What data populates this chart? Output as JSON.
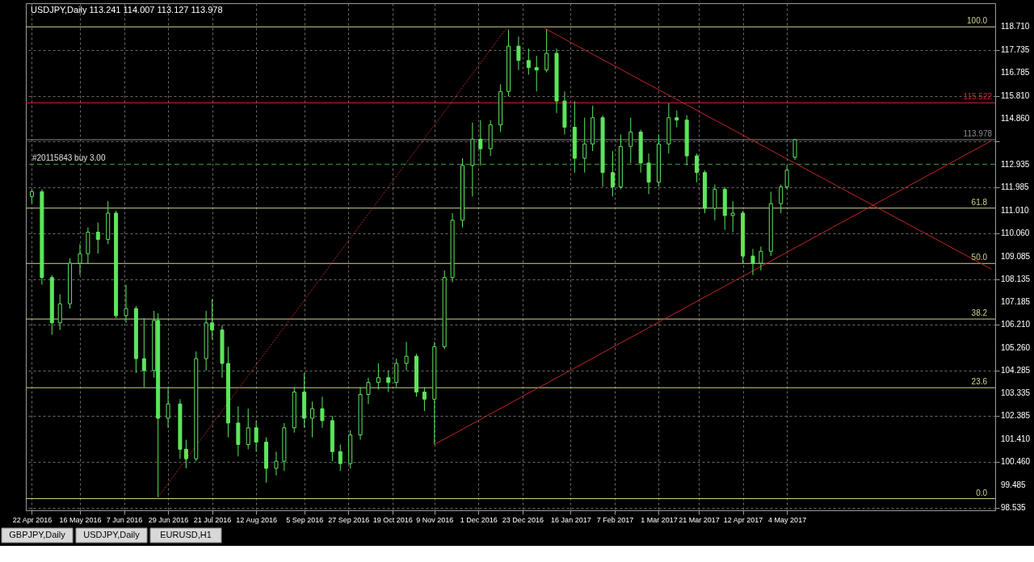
{
  "chart_data": {
    "type": "candlestick",
    "title": "USDJPY,Daily  113.241 114.007 113.127 113.978",
    "color": "#5ce65c",
    "x": [
      "2016-04-22",
      "2016-04-27",
      "2016-05-02",
      "2016-05-06",
      "2016-05-11",
      "2016-05-16",
      "2016-05-20",
      "2016-05-25",
      "2016-05-30",
      "2016-06-03",
      "2016-06-08",
      "2016-06-13",
      "2016-06-17",
      "2016-06-22",
      "2016-06-24",
      "2016-06-29",
      "2016-07-05",
      "2016-07-08",
      "2016-07-13",
      "2016-07-18",
      "2016-07-21",
      "2016-07-26",
      "2016-07-29",
      "2016-08-03",
      "2016-08-08",
      "2016-08-12",
      "2016-08-17",
      "2016-08-22",
      "2016-08-26",
      "2016-08-31",
      "2016-09-05",
      "2016-09-09",
      "2016-09-14",
      "2016-09-19",
      "2016-09-23",
      "2016-09-28",
      "2016-10-03",
      "2016-10-07",
      "2016-10-12",
      "2016-10-17",
      "2016-10-21",
      "2016-10-26",
      "2016-10-31",
      "2016-11-04",
      "2016-11-09",
      "2016-11-14",
      "2016-11-18",
      "2016-11-23",
      "2016-11-28",
      "2016-12-02",
      "2016-12-07",
      "2016-12-12",
      "2016-12-16",
      "2016-12-21",
      "2016-12-26",
      "2016-12-30",
      "2017-01-04",
      "2017-01-09",
      "2017-01-13",
      "2017-01-18",
      "2017-01-23",
      "2017-01-27",
      "2017-02-01",
      "2017-02-06",
      "2017-02-10",
      "2017-02-15",
      "2017-02-20",
      "2017-02-24",
      "2017-03-01",
      "2017-03-06",
      "2017-03-10",
      "2017-03-15",
      "2017-03-20",
      "2017-03-24",
      "2017-03-29",
      "2017-04-03",
      "2017-04-07",
      "2017-04-12",
      "2017-04-17",
      "2017-04-21",
      "2017-04-26",
      "2017-05-01",
      "2017-05-04",
      "2017-05-08"
    ],
    "ohlc": [
      [
        111.6,
        111.9,
        111.3,
        111.8
      ],
      [
        111.8,
        111.9,
        107.9,
        108.2
      ],
      [
        108.2,
        108.3,
        105.8,
        106.3
      ],
      [
        106.3,
        107.5,
        106.0,
        107.1
      ],
      [
        107.1,
        109.0,
        106.9,
        108.8
      ],
      [
        108.8,
        109.6,
        108.3,
        109.2
      ],
      [
        109.2,
        110.3,
        108.8,
        110.1
      ],
      [
        110.1,
        110.5,
        109.2,
        109.8
      ],
      [
        109.8,
        111.4,
        109.6,
        110.9
      ],
      [
        110.9,
        111.0,
        106.5,
        106.6
      ],
      [
        106.6,
        107.9,
        106.3,
        106.9
      ],
      [
        106.9,
        107.0,
        104.2,
        104.8
      ],
      [
        104.8,
        106.5,
        103.6,
        104.3
      ],
      [
        104.3,
        106.8,
        104.0,
        106.4
      ],
      [
        106.4,
        106.7,
        99.0,
        102.3
      ],
      [
        102.3,
        103.6,
        101.9,
        102.9
      ],
      [
        102.9,
        103.1,
        100.6,
        101.0
      ],
      [
        101.0,
        101.4,
        100.2,
        100.6
      ],
      [
        100.6,
        105.1,
        100.5,
        104.8
      ],
      [
        104.8,
        106.8,
        104.3,
        106.3
      ],
      [
        106.3,
        107.3,
        105.6,
        106.0
      ],
      [
        106.0,
        106.2,
        104.0,
        104.6
      ],
      [
        104.6,
        105.3,
        101.5,
        102.1
      ],
      [
        102.1,
        102.8,
        100.7,
        101.2
      ],
      [
        101.2,
        102.7,
        101.0,
        101.9
      ],
      [
        101.9,
        102.2,
        100.9,
        101.3
      ],
      [
        101.3,
        101.5,
        99.6,
        100.2
      ],
      [
        100.2,
        100.9,
        99.9,
        100.5
      ],
      [
        100.5,
        102.1,
        100.1,
        101.9
      ],
      [
        101.9,
        103.6,
        101.7,
        103.4
      ],
      [
        103.4,
        104.2,
        101.9,
        102.3
      ],
      [
        102.3,
        103.0,
        101.5,
        102.7
      ],
      [
        102.7,
        103.2,
        101.9,
        102.2
      ],
      [
        102.2,
        102.4,
        100.5,
        100.9
      ],
      [
        100.9,
        101.2,
        100.1,
        100.4
      ],
      [
        100.4,
        101.8,
        100.2,
        101.6
      ],
      [
        101.6,
        103.6,
        101.4,
        103.3
      ],
      [
        103.3,
        104.0,
        102.9,
        103.8
      ],
      [
        103.8,
        104.6,
        103.5,
        104.0
      ],
      [
        104.0,
        104.3,
        103.4,
        103.8
      ],
      [
        103.8,
        104.8,
        103.6,
        104.6
      ],
      [
        104.6,
        105.5,
        104.3,
        104.9
      ],
      [
        104.9,
        105.0,
        103.2,
        103.4
      ],
      [
        103.4,
        103.6,
        102.6,
        103.1
      ],
      [
        103.1,
        105.5,
        101.2,
        105.3
      ],
      [
        105.3,
        108.5,
        105.2,
        108.2
      ],
      [
        108.2,
        110.9,
        108.0,
        110.6
      ],
      [
        110.6,
        113.2,
        110.3,
        112.9
      ],
      [
        112.9,
        114.7,
        111.6,
        114.0
      ],
      [
        114.0,
        114.8,
        112.9,
        113.6
      ],
      [
        113.6,
        114.8,
        113.3,
        114.6
      ],
      [
        114.6,
        116.3,
        114.3,
        116.0
      ],
      [
        116.0,
        118.6,
        115.8,
        117.9
      ],
      [
        117.9,
        118.3,
        116.9,
        117.3
      ],
      [
        117.3,
        117.8,
        116.7,
        117.0
      ],
      [
        117.0,
        117.5,
        116.0,
        116.9
      ],
      [
        116.9,
        118.6,
        116.8,
        117.6
      ],
      [
        117.6,
        117.8,
        115.1,
        115.6
      ],
      [
        115.6,
        116.0,
        114.2,
        114.5
      ],
      [
        114.5,
        115.6,
        112.6,
        113.2
      ],
      [
        113.2,
        114.9,
        112.6,
        113.8
      ],
      [
        113.8,
        115.4,
        113.5,
        114.9
      ],
      [
        114.9,
        115.0,
        112.0,
        112.6
      ],
      [
        112.6,
        113.5,
        111.6,
        112.0
      ],
      [
        112.0,
        114.2,
        111.9,
        113.7
      ],
      [
        113.7,
        114.9,
        113.0,
        114.3
      ],
      [
        114.3,
        114.4,
        112.6,
        113.0
      ],
      [
        113.0,
        113.4,
        111.7,
        112.2
      ],
      [
        112.2,
        114.2,
        112.0,
        113.8
      ],
      [
        113.8,
        115.5,
        113.4,
        114.9
      ],
      [
        114.9,
        115.2,
        114.5,
        114.8
      ],
      [
        114.8,
        115.0,
        112.9,
        113.3
      ],
      [
        113.3,
        113.4,
        112.2,
        112.6
      ],
      [
        112.6,
        112.7,
        110.9,
        111.1
      ],
      [
        111.1,
        112.1,
        110.6,
        111.9
      ],
      [
        111.9,
        112.0,
        110.2,
        110.8
      ],
      [
        110.8,
        111.4,
        110.1,
        110.9
      ],
      [
        110.9,
        111.0,
        108.8,
        109.1
      ],
      [
        109.1,
        109.4,
        108.3,
        108.8
      ],
      [
        108.8,
        109.5,
        108.5,
        109.3
      ],
      [
        109.3,
        111.8,
        109.1,
        111.3
      ],
      [
        111.3,
        112.1,
        110.9,
        112.0
      ],
      [
        112.0,
        112.9,
        111.9,
        112.7
      ],
      [
        113.241,
        114.007,
        113.127,
        113.978
      ]
    ],
    "series": [
      {
        "type": "line",
        "color": "#c0282d",
        "x": [
          "2017-01-03",
          "2017-08-14"
        ],
        "values": [
          118.65,
          108.56
        ]
      },
      {
        "type": "line",
        "color": "#c0282d",
        "x": [
          "2016-11-09",
          "2017-08-14"
        ],
        "values": [
          101.2,
          113.93
        ]
      },
      {
        "type": "line",
        "color": "#c0282d",
        "line_style": "dotted",
        "x": [
          "2016-06-24",
          "2016-12-15"
        ],
        "values": [
          99.0,
          118.66
        ]
      }
    ],
    "ref_lines": [
      {
        "axis": "y",
        "value": 118.71,
        "color": "#d2d28c"
      },
      {
        "axis": "y",
        "value": 111.11,
        "color": "#d2d28c"
      },
      {
        "axis": "y",
        "value": 108.79,
        "color": "#d2d28c"
      },
      {
        "axis": "y",
        "value": 106.46,
        "color": "#d2d28c"
      },
      {
        "axis": "y",
        "value": 103.58,
        "color": "#d2d28c"
      },
      {
        "axis": "y",
        "value": 98.93,
        "color": "#d2d28c"
      },
      {
        "axis": "y",
        "value": 115.522,
        "label": "115.522",
        "color": "#d0202a"
      },
      {
        "axis": "y",
        "value": 113.978,
        "label": "113.978",
        "color": "#8c8c8c"
      },
      {
        "axis": "y",
        "value": 112.95,
        "label": "#20115843 buy 3.00",
        "color": "#3c9c3c",
        "line_style": "dashed"
      }
    ],
    "annotations": [
      "GBPJPY,Daily",
      "USDJPY,Daily",
      "EURUSD,H1",
      {
        "text": "100.0",
        "x": "2017-08-12",
        "y": 118.71
      },
      {
        "text": "61.8",
        "x": "2017-08-12",
        "y": 111.11
      },
      {
        "text": "50.0",
        "x": "2017-08-12",
        "y": 108.79
      },
      {
        "text": "38.2",
        "x": "2017-08-12",
        "y": 106.46
      },
      {
        "text": "23.6",
        "x": "2017-08-12",
        "y": 103.58
      },
      {
        "text": "0.0",
        "x": "2017-08-12",
        "y": 98.93
      }
    ],
    "xlim": [
      "2016-04-21",
      "2017-08-14"
    ],
    "xticks": [
      {
        "value": "2016-04-22",
        "label": "22 Apr 2016"
      },
      {
        "value": "2016-05-16",
        "label": "16 May 2016"
      },
      {
        "value": "2016-06-07",
        "label": "7 Jun 2016"
      },
      {
        "value": "2016-06-29",
        "label": "29 Jun 2016"
      },
      {
        "value": "2016-07-21",
        "label": "21 Jul 2016"
      },
      {
        "value": "2016-08-12",
        "label": "12 Aug 2016"
      },
      {
        "value": "2016-09-05",
        "label": "5 Sep 2016"
      },
      {
        "value": "2016-09-27",
        "label": "27 Sep 2016"
      },
      {
        "value": "2016-10-19",
        "label": "19 Oct 2016"
      },
      {
        "value": "2016-11-09",
        "label": "9 Nov 2016"
      },
      {
        "value": "2016-12-01",
        "label": "1 Dec 2016"
      },
      {
        "value": "2016-12-23",
        "label": "23 Dec 2016"
      },
      {
        "value": "2017-01-16",
        "label": "16 Jan 2017"
      },
      {
        "value": "2017-02-07",
        "label": "7 Feb 2017"
      },
      {
        "value": "2017-03-01",
        "label": "1 Mar 2017"
      },
      {
        "value": "2017-03-21",
        "label": "21 Mar 2017"
      },
      {
        "value": "2017-04-12",
        "label": "12 Apr 2017"
      },
      {
        "value": "2017-05-04",
        "label": "4 May 2017"
      }
    ],
    "ylim": [
      98.44,
      119.7
    ],
    "yticks": [
      {
        "value": 98.535,
        "label": "98.535"
      },
      {
        "value": 99.485,
        "label": "99.485"
      },
      {
        "value": 100.46,
        "label": "100.460"
      },
      {
        "value": 101.41,
        "label": "101.410"
      },
      {
        "value": 102.385,
        "label": "102.385"
      },
      {
        "value": 103.335,
        "label": "103.335"
      },
      {
        "value": 104.285,
        "label": "104.285"
      },
      {
        "value": 105.26,
        "label": "105.260"
      },
      {
        "value": 106.21,
        "label": "106.210"
      },
      {
        "value": 107.185,
        "label": "107.185"
      },
      {
        "value": 108.135,
        "label": "108.135"
      },
      {
        "value": 109.085,
        "label": "109.085"
      },
      {
        "value": 110.06,
        "label": "110.060"
      },
      {
        "value": 111.01,
        "label": "111.010"
      },
      {
        "value": 111.985,
        "label": "111.985"
      },
      {
        "value": 112.935,
        "label": "112.935"
      },
      {
        "value": 113.91,
        "label": null
      },
      {
        "value": 114.86,
        "label": "114.860"
      },
      {
        "value": 115.81,
        "label": "115.810"
      },
      {
        "value": 116.785,
        "label": "116.785"
      },
      {
        "value": 117.735,
        "label": "117.735"
      },
      {
        "value": 118.71,
        "label": "118.710"
      }
    ],
    "grid": true
  }
}
